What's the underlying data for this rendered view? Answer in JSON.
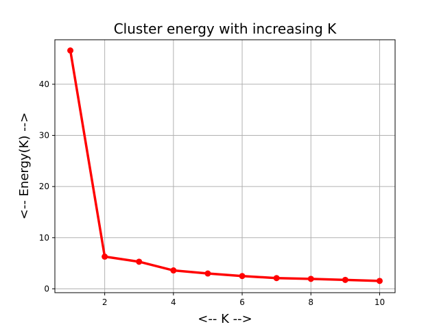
{
  "chart_data": {
    "type": "line",
    "title": "Cluster energy with increasing K",
    "xlabel": "<-- K -->",
    "ylabel": "<-- Energy(K) -->",
    "x": [
      1,
      2,
      3,
      4,
      5,
      6,
      7,
      8,
      9,
      10
    ],
    "series": [
      {
        "values": [
          46.6,
          6.3,
          5.3,
          3.6,
          3.0,
          2.5,
          2.1,
          1.95,
          1.75,
          1.55
        ],
        "color": "#ff0000"
      }
    ],
    "xlim": [
      0.55,
      10.45
    ],
    "ylim": [
      -0.75,
      48.7
    ],
    "xticks": [
      2,
      4,
      6,
      8,
      10
    ],
    "yticks": [
      0,
      10,
      20,
      30,
      40
    ],
    "grid": true,
    "marker": "circle"
  }
}
